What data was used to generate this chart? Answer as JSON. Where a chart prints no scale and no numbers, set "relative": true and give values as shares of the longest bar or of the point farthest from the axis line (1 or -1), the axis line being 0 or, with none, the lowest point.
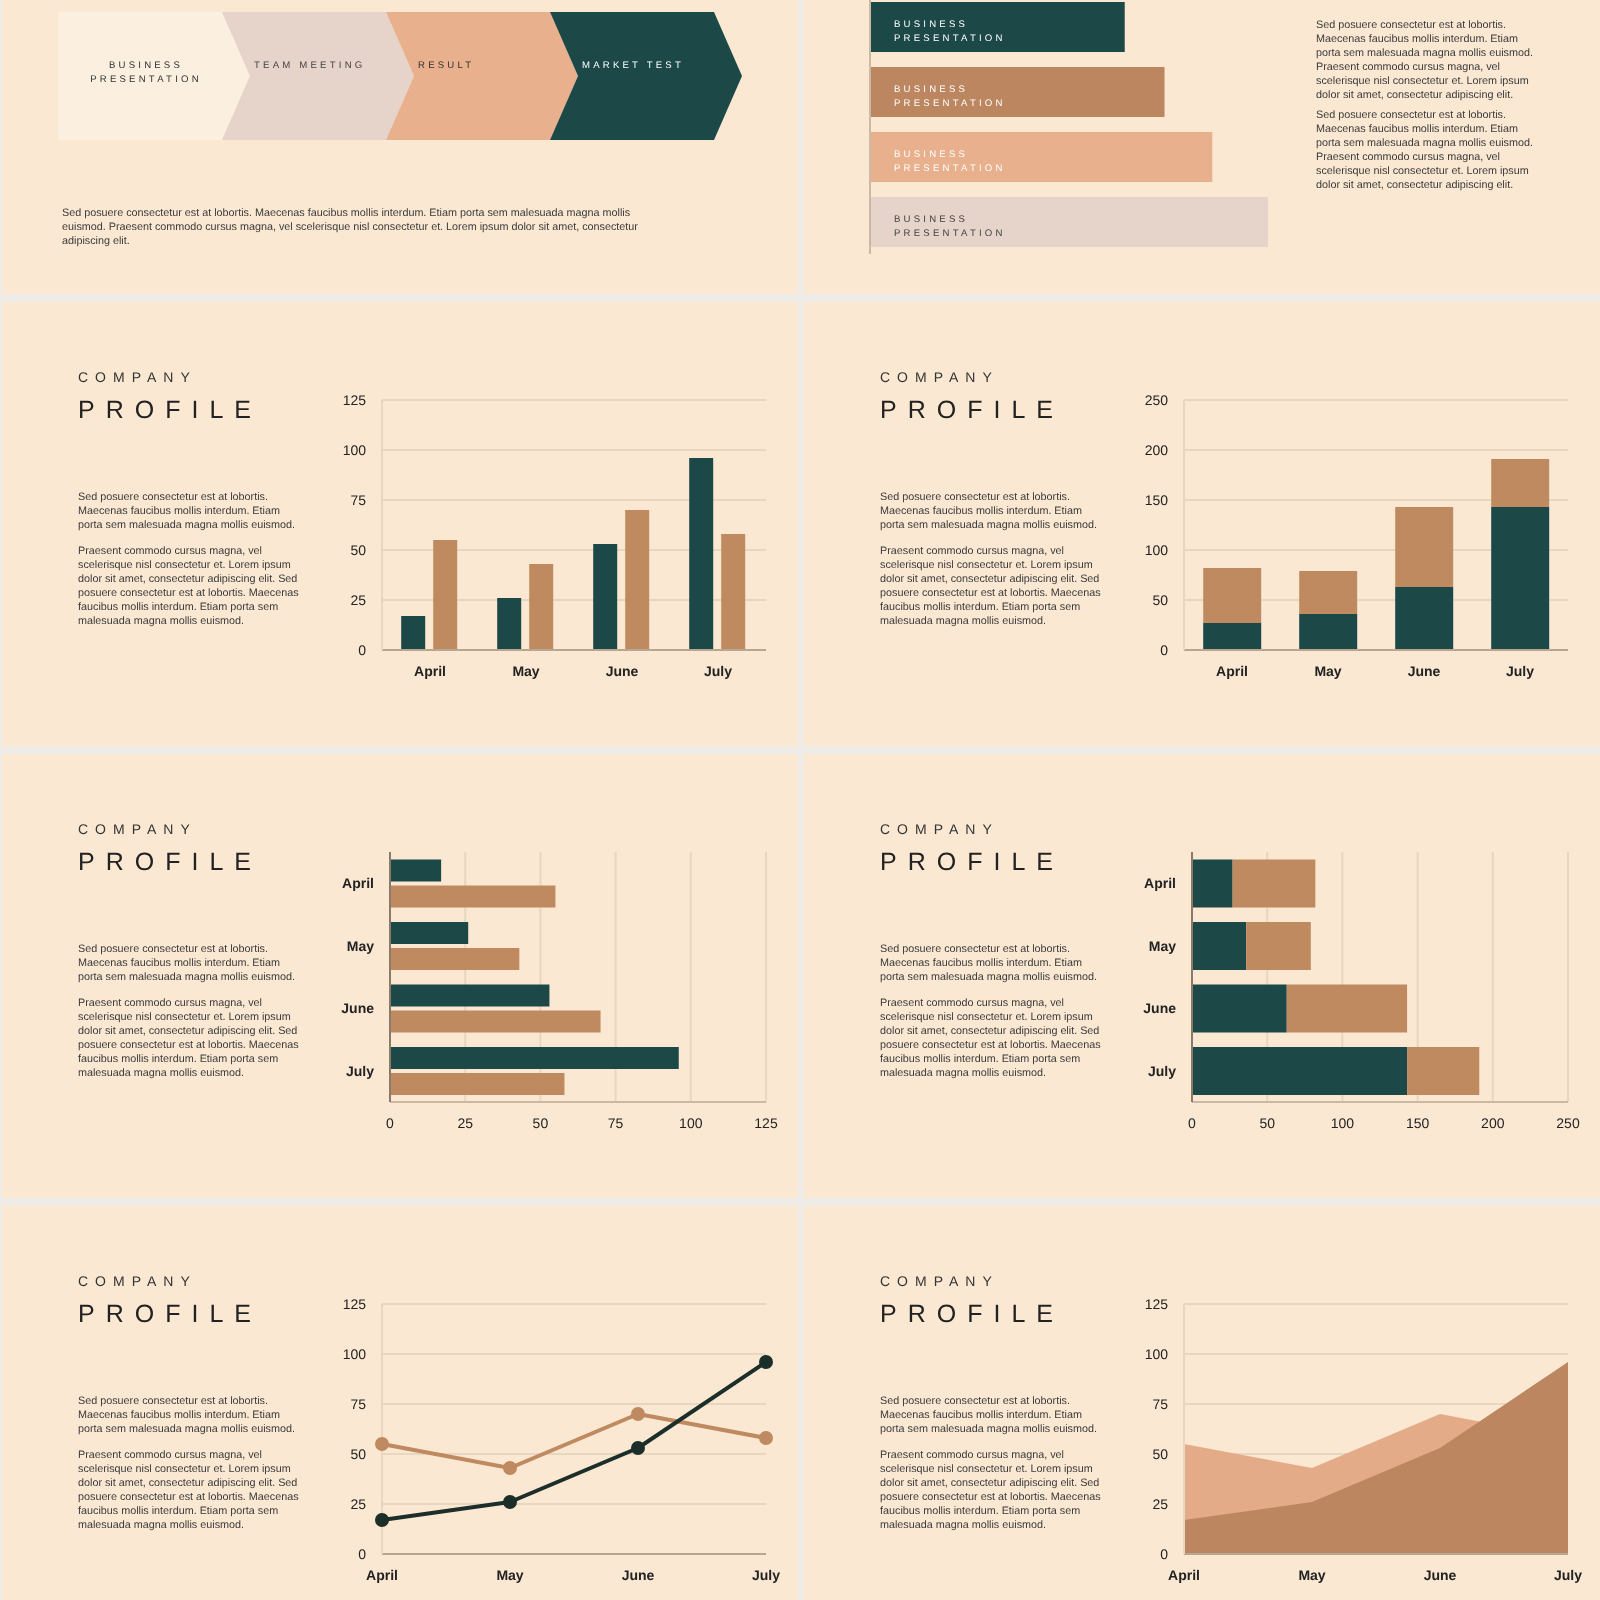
{
  "chart_data": [
    {
      "type": "other",
      "annotations": [
        "BUSINESS PRESENTATION",
        "TEAM MEETING",
        "RESULT",
        "MARKET TEST",
        "Sed posuere consectetur est at lobortis. Maecenas faucibus mollis interdum. Etiam porta sem malesuada magna mollis euismod. Praesent commodo cursus magna, vel scelerisque nisl consectetur et. Lorem ipsum dolor sit amet, consectetur adipiscing elit."
      ]
    },
    {
      "type": "bar",
      "orientation": "horizontal",
      "relative": true,
      "categories": [
        "BUSINESS PRESENTATION",
        "BUSINESS PRESENTATION",
        "BUSINESS PRESENTATION",
        "BUSINESS PRESENTATION"
      ],
      "values": [
        0.64,
        0.74,
        0.86,
        1
      ],
      "colors": [
        "#1d4848",
        "#bb8660",
        "#e8b08d",
        "#e6d3c9"
      ],
      "annotations": [
        "Sed posuere consectetur est at lobortis. Maecenas faucibus mollis interdum. Etiam porta sem malesuada magna mollis euismod. Praesent commodo cursus magna, vel scelerisque nisl consectetur et. Lorem ipsum dolor sit amet, consectetur adipiscing elit.",
        "Sed posuere consectetur est at lobortis. Maecenas faucibus mollis interdum. Etiam porta sem malesuada magna mollis euismod. Praesent commodo cursus magna, vel scelerisque nisl consectetur et. Lorem ipsum dolor sit amet, consectetur adipiscing elit."
      ]
    },
    {
      "type": "bar",
      "title": "COMPANY PROFILE",
      "annotations": [
        "Sed posuere consectetur est at lobortis. Maecenas faucibus mollis interdum. Etiam porta sem malesuada magna mollis euismod.",
        "Praesent commodo cursus magna, vel scelerisque nisl consectetur et. Lorem ipsum dolor sit amet, consectetur adipiscing elit. Sed posuere consectetur est at lobortis. Maecenas faucibus mollis interdum. Etiam porta sem malesuada magna mollis euismod."
      ],
      "categories": [
        "April",
        "May",
        "June",
        "July"
      ],
      "series": [
        {
          "color": "#1d4848",
          "values": [
            17,
            26,
            53,
            96
          ]
        },
        {
          "color": "#bf8a60",
          "values": [
            55,
            43,
            70,
            58
          ]
        }
      ],
      "ylim": [
        0,
        125
      ],
      "yticks": [
        0,
        25,
        50,
        75,
        100,
        125
      ],
      "grid": "y",
      "legend": false
    },
    {
      "type": "bar",
      "stacked": true,
      "title": "COMPANY PROFILE",
      "annotations": [
        "Sed posuere consectetur est at lobortis. Maecenas faucibus mollis interdum. Etiam porta sem malesuada magna mollis euismod.",
        "Praesent commodo cursus magna, vel scelerisque nisl consectetur et. Lorem ipsum dolor sit amet, consectetur adipiscing elit. Sed posuere consectetur est at lobortis. Maecenas faucibus mollis interdum. Etiam porta sem malesuada magna mollis euismod."
      ],
      "categories": [
        "April",
        "May",
        "June",
        "July"
      ],
      "series": [
        {
          "color": "#1d4848",
          "values": [
            27,
            36,
            63,
            143
          ]
        },
        {
          "color": "#bf8a60",
          "values": [
            55,
            43,
            80,
            48
          ]
        }
      ],
      "ylim": [
        0,
        250
      ],
      "yticks": [
        0,
        50,
        100,
        150,
        200,
        250
      ],
      "grid": "y",
      "legend": false
    },
    {
      "type": "bar",
      "orientation": "horizontal",
      "title": "COMPANY PROFILE",
      "annotations": [
        "Sed posuere consectetur est at lobortis. Maecenas faucibus mollis interdum. Etiam porta sem malesuada magna mollis euismod.",
        "Praesent commodo cursus magna, vel scelerisque nisl consectetur et. Lorem ipsum dolor sit amet, consectetur adipiscing elit. Sed posuere consectetur est at lobortis. Maecenas faucibus mollis interdum. Etiam porta sem malesuada magna mollis euismod."
      ],
      "categories": [
        "April",
        "May",
        "June",
        "July"
      ],
      "series": [
        {
          "color": "#1d4848",
          "values": [
            17,
            26,
            53,
            96
          ]
        },
        {
          "color": "#bf8a60",
          "values": [
            55,
            43,
            70,
            58
          ]
        }
      ],
      "xlim": [
        0,
        125
      ],
      "xticks": [
        0,
        25,
        50,
        75,
        100,
        125
      ],
      "grid": "x",
      "legend": false
    },
    {
      "type": "bar",
      "orientation": "horizontal",
      "stacked": true,
      "title": "COMPANY PROFILE",
      "annotations": [
        "Sed posuere consectetur est at lobortis. Maecenas faucibus mollis interdum. Etiam porta sem malesuada magna mollis euismod.",
        "Praesent commodo cursus magna, vel scelerisque nisl consectetur et. Lorem ipsum dolor sit amet, consectetur adipiscing elit. Sed posuere consectetur est at lobortis. Maecenas faucibus mollis interdum. Etiam porta sem malesuada magna mollis euismod."
      ],
      "categories": [
        "April",
        "May",
        "June",
        "July"
      ],
      "series": [
        {
          "color": "#1d4848",
          "values": [
            27,
            36,
            63,
            143
          ]
        },
        {
          "color": "#bf8a60",
          "values": [
            55,
            43,
            80,
            48
          ]
        }
      ],
      "xlim": [
        0,
        250
      ],
      "xticks": [
        0,
        50,
        100,
        150,
        200,
        250
      ],
      "grid": "x",
      "legend": false
    },
    {
      "type": "line",
      "marker": "circle",
      "title": "COMPANY PROFILE",
      "annotations": [
        "Sed posuere consectetur est at lobortis. Maecenas faucibus mollis interdum. Etiam porta sem malesuada magna mollis euismod.",
        "Praesent commodo cursus magna, vel scelerisque nisl consectetur et. Lorem ipsum dolor sit amet, consectetur adipiscing elit. Sed posuere consectetur est at lobortis. Maecenas faucibus mollis interdum. Etiam porta sem malesuada magna mollis euismod."
      ],
      "categories": [
        "April",
        "May",
        "June",
        "July"
      ],
      "series": [
        {
          "color": "#bf8a60",
          "values": [
            55,
            43,
            70,
            58
          ]
        },
        {
          "color": "#1b2e29",
          "values": [
            17,
            26,
            53,
            96
          ]
        }
      ],
      "ylim": [
        0,
        125
      ],
      "yticks": [
        0,
        25,
        50,
        75,
        100,
        125
      ],
      "grid": "y",
      "legend": false
    },
    {
      "type": "area",
      "title": "COMPANY PROFILE",
      "annotations": [
        "Sed posuere consectetur est at lobortis. Maecenas faucibus mollis interdum. Etiam porta sem malesuada magna mollis euismod.",
        "Praesent commodo cursus magna, vel scelerisque nisl consectetur et. Lorem ipsum dolor sit amet, consectetur adipiscing elit. Sed posuere consectetur est at lobortis. Maecenas faucibus mollis interdum. Etiam porta sem malesuada magna mollis euismod."
      ],
      "categories": [
        "April",
        "May",
        "June",
        "July"
      ],
      "series": [
        {
          "color": "#e3ab87",
          "values": [
            55,
            43,
            70,
            58
          ]
        },
        {
          "color": "#bb8660",
          "values": [
            17,
            26,
            53,
            96
          ]
        }
      ],
      "ylim": [
        0,
        125
      ],
      "yticks": [
        0,
        25,
        50,
        75,
        100,
        125
      ],
      "grid": "y",
      "legend": false
    }
  ]
}
